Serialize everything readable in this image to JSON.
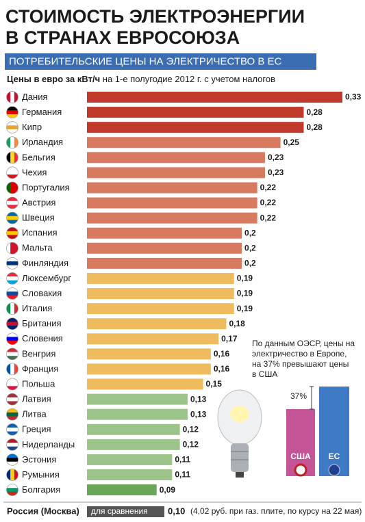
{
  "chart_data": {
    "type": "bar",
    "orientation": "horizontal",
    "title": [
      "СТОИМОСТЬ ЭЛЕКТРОЭНЕРГИИ",
      "В СТРАНАХ ЕВРОСОЮЗА"
    ],
    "subtitle": "ПОТРЕБИТЕЛЬСКИЕ ЦЕНЫ НА ЭЛЕКТРИЧЕСТВО В ЕС",
    "axis_label": {
      "bold": "Цены в евро за кВт/ч",
      "rest": "на 1-е полугодие 2012 г. с учетом налогов"
    },
    "categories": [
      "Дания",
      "Германия",
      "Кипр",
      "Ирландия",
      "Бельгия",
      "Чехия",
      "Португалия",
      "Австрия",
      "Швеция",
      "Испания",
      "Мальта",
      "Финляндия",
      "Люксембург",
      "Словакия",
      "Италия",
      "Британия",
      "Словения",
      "Венгрия",
      "Франция",
      "Польша",
      "Латвия",
      "Литва",
      "Греция",
      "Нидерланды",
      "Эстония",
      "Румыния",
      "Болгария"
    ],
    "values": [
      0.33,
      0.28,
      0.28,
      0.25,
      0.23,
      0.23,
      0.22,
      0.22,
      0.22,
      0.2,
      0.2,
      0.2,
      0.19,
      0.19,
      0.19,
      0.18,
      0.17,
      0.16,
      0.16,
      0.15,
      0.13,
      0.13,
      0.12,
      0.12,
      0.11,
      0.11,
      0.09
    ],
    "value_labels": [
      "0,33",
      "0,28",
      "0,28",
      "0,25",
      "0,23",
      "0,23",
      "0,22",
      "0,22",
      "0,22",
      "0,2",
      "0,2",
      "0,2",
      "0,19",
      "0,19",
      "0,19",
      "0,18",
      "0,17",
      "0,16",
      "0,16",
      "0,15",
      "0,13",
      "0,13",
      "0,12",
      "0,12",
      "0,11",
      "0,11",
      "0,09"
    ],
    "colors": [
      "#c0392b",
      "#c0392b",
      "#c0392b",
      "#d77a5f",
      "#d77a5f",
      "#d77a5f",
      "#d77a5f",
      "#d77a5f",
      "#d77a5f",
      "#d77a5f",
      "#d77a5f",
      "#d77a5f",
      "#eebc5e",
      "#eebc5e",
      "#eebc5e",
      "#eebc5e",
      "#eebc5e",
      "#eebc5e",
      "#eebc5e",
      "#eebc5e",
      "#9cc48a",
      "#9cc48a",
      "#9cc48a",
      "#9cc48a",
      "#9cc48a",
      "#9cc48a",
      "#6aa657"
    ],
    "comparison": {
      "name": "Россия (Москва)",
      "tag": "для сравнения",
      "value": 0.1,
      "value_label": "0,10",
      "note": "(4,02 руб. при газ. плите, по курсу на 22 мая)",
      "color": "#555555"
    },
    "inset": {
      "note": [
        "По данным ОЭСР, цены на",
        "электричество в Европе,",
        "на 37% превышают цены",
        "в США"
      ],
      "difference": "37%",
      "categories": [
        "США",
        "ЕС"
      ]
    }
  }
}
